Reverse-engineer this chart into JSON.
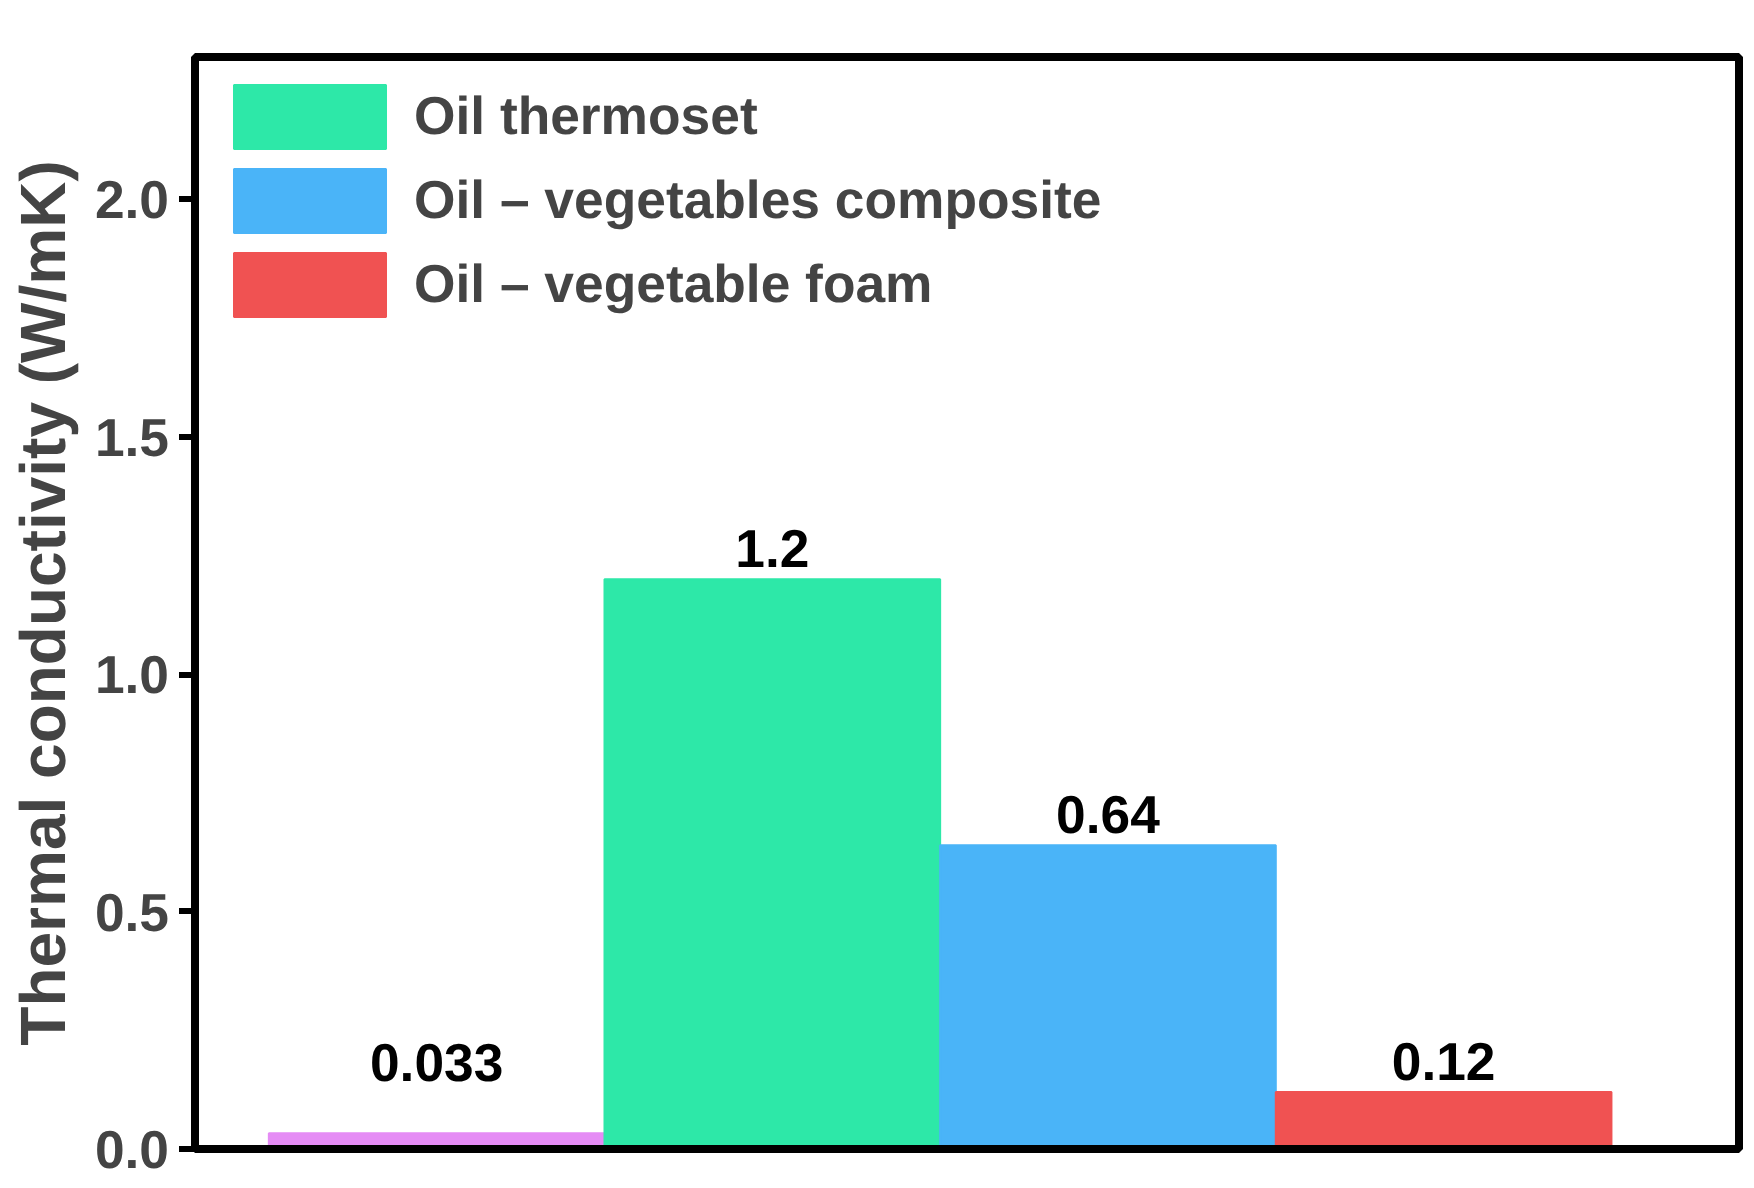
{
  "chart_data": {
    "type": "bar",
    "ylabel": "Thermal conductivity (W/mK)",
    "categories": [
      null,
      null,
      null,
      null
    ],
    "series": [
      {
        "color": "#e58cf5",
        "values": [
          0.033,
          null,
          null,
          null
        ]
      },
      {
        "name": "Oil thermoset",
        "color": "#2de8a8",
        "values": [
          null,
          1.2,
          null,
          null
        ]
      },
      {
        "name": "Oil – vegetables composite",
        "color": "#4ab4f8",
        "values": [
          null,
          null,
          0.64,
          null
        ]
      },
      {
        "name": "Oil – vegetable foam",
        "color": "#f05252",
        "values": [
          null,
          null,
          null,
          0.12
        ]
      }
    ],
    "ylim": [
      0,
      2.3
    ],
    "yticks": [
      {
        "value": 0,
        "label": "0.0"
      },
      {
        "value": 0.5,
        "label": "0.5"
      },
      {
        "value": 1,
        "label": "1.0"
      },
      {
        "value": 1.5,
        "label": "1.5"
      },
      {
        "value": 2,
        "label": "2.0"
      }
    ],
    "data_labels": true,
    "legend": "top left",
    "grid": false
  }
}
